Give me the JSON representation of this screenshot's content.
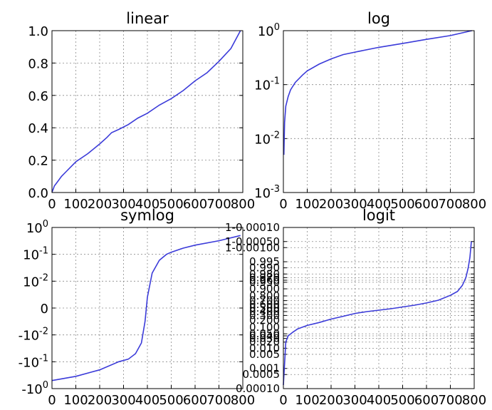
{
  "chart_data": [
    {
      "type": "line",
      "title": "linear",
      "yscale": "linear",
      "xlim": [
        0,
        800
      ],
      "ylim": [
        0,
        1
      ],
      "grid": true,
      "xticks": [
        "0",
        "100",
        "200",
        "300",
        "400",
        "500",
        "600",
        "700",
        "800"
      ],
      "yticks": [
        {
          "value": 0.0,
          "label": "0.0"
        },
        {
          "value": 0.2,
          "label": "0.2"
        },
        {
          "value": 0.4,
          "label": "0.4"
        },
        {
          "value": 0.6,
          "label": "0.6"
        },
        {
          "value": 0.8,
          "label": "0.8"
        },
        {
          "value": 1.0,
          "label": "1.0"
        }
      ],
      "series": [
        {
          "color": "#3b3bd9",
          "x": [
            0,
            5,
            10,
            20,
            40,
            60,
            80,
            100,
            150,
            200,
            230,
            250,
            280,
            320,
            360,
            400,
            450,
            500,
            550,
            600,
            650,
            700,
            750,
            790
          ],
          "y": [
            0.002,
            0.02,
            0.04,
            0.06,
            0.1,
            0.13,
            0.16,
            0.19,
            0.24,
            0.3,
            0.34,
            0.37,
            0.39,
            0.42,
            0.46,
            0.49,
            0.54,
            0.58,
            0.63,
            0.69,
            0.74,
            0.81,
            0.89,
            1.0
          ]
        }
      ]
    },
    {
      "type": "line",
      "title": "log",
      "yscale": "log",
      "xlim": [
        0,
        800
      ],
      "ylim": [
        0.001,
        1
      ],
      "grid": true,
      "xticks": [
        "0",
        "100",
        "200",
        "300",
        "400",
        "500",
        "600",
        "700",
        "800"
      ],
      "yticks": [
        {
          "value": 0.001,
          "base": "10",
          "exp": "-3"
        },
        {
          "value": 0.01,
          "base": "10",
          "exp": "-2"
        },
        {
          "value": 0.1,
          "base": "10",
          "exp": "-1"
        },
        {
          "value": 1,
          "base": "10",
          "exp": "0"
        }
      ],
      "series": [
        {
          "color": "#3b3bd9",
          "x": [
            2,
            5,
            10,
            20,
            30,
            50,
            80,
            100,
            150,
            200,
            250,
            300,
            400,
            500,
            600,
            700,
            790
          ],
          "y": [
            0.005,
            0.02,
            0.04,
            0.06,
            0.08,
            0.11,
            0.15,
            0.18,
            0.24,
            0.3,
            0.36,
            0.4,
            0.49,
            0.58,
            0.69,
            0.81,
            1.0
          ]
        }
      ]
    },
    {
      "type": "line",
      "title": "symlog",
      "yscale": "symlog",
      "xlim": [
        0,
        800
      ],
      "ylim": [
        -1,
        1
      ],
      "grid": true,
      "xticks": [
        "0",
        "100",
        "200",
        "300",
        "400",
        "500",
        "600",
        "700",
        "800"
      ],
      "yticks": [
        {
          "value": 1,
          "base": "10",
          "exp": "0"
        },
        {
          "value": 0.1,
          "base": "10",
          "exp": "-1"
        },
        {
          "value": 0.01,
          "base": "10",
          "exp": "-2"
        },
        {
          "value": 0,
          "label": "0"
        },
        {
          "value": -0.01,
          "base": "-10",
          "exp": "-2"
        },
        {
          "value": -0.1,
          "base": "-10",
          "exp": "-1"
        },
        {
          "value": -1,
          "base": "-10",
          "exp": "0"
        }
      ],
      "series": [
        {
          "color": "#3b3bd9",
          "x": [
            0,
            100,
            200,
            280,
            320,
            350,
            375,
            390,
            400,
            420,
            450,
            480,
            500,
            550,
            600,
            700,
            790
          ],
          "y": [
            -0.5,
            -0.35,
            -0.2,
            -0.1,
            -0.08,
            -0.05,
            -0.02,
            -0.005,
            0.004,
            0.02,
            0.06,
            0.1,
            0.12,
            0.17,
            0.22,
            0.32,
            0.5
          ]
        }
      ]
    },
    {
      "type": "line",
      "title": "logit",
      "yscale": "logit",
      "xlim": [
        0,
        800
      ],
      "ylim": [
        0.0001,
        0.9999
      ],
      "grid": true,
      "xticks": [
        "0",
        "100",
        "200",
        "300",
        "400",
        "500",
        "600",
        "700",
        "800"
      ],
      "yticks": [
        {
          "value": 0.9999,
          "label": "1-0.00010"
        },
        {
          "value": 0.9995,
          "label": "1-0.00050"
        },
        {
          "value": 0.999,
          "label": "1-0.00100"
        },
        {
          "value": 0.995,
          "label": "0.995"
        },
        {
          "value": 0.99,
          "label": "0.990"
        },
        {
          "value": 0.98,
          "label": "0.980"
        },
        {
          "value": 0.97,
          "label": "0.970"
        },
        {
          "value": 0.96,
          "label": "0.960"
        },
        {
          "value": 0.95,
          "label": "0.950"
        },
        {
          "value": 0.9,
          "label": "0.900"
        },
        {
          "value": 0.8,
          "label": "0.800"
        },
        {
          "value": 0.7,
          "label": "0.700"
        },
        {
          "value": 0.6,
          "label": "0.600"
        },
        {
          "value": 0.5,
          "label": "0.500"
        },
        {
          "value": 0.4,
          "label": "0.400"
        },
        {
          "value": 0.3,
          "label": "0.300"
        },
        {
          "value": 0.2,
          "label": "0.200"
        },
        {
          "value": 0.1,
          "label": "0.100"
        },
        {
          "value": 0.05,
          "label": "0.050"
        },
        {
          "value": 0.04,
          "label": "0.040"
        },
        {
          "value": 0.03,
          "label": "0.030"
        },
        {
          "value": 0.02,
          "label": "0.020"
        },
        {
          "value": 0.01,
          "label": "0.010"
        },
        {
          "value": 0.005,
          "label": "0.005"
        },
        {
          "value": 0.001,
          "label": "0.001"
        },
        {
          "value": 0.0005,
          "label": "0.0005"
        },
        {
          "value": 0.0001,
          "label": "0.00010"
        }
      ],
      "series": [
        {
          "color": "#3b3bd9",
          "x": [
            0,
            10,
            20,
            40,
            60,
            100,
            150,
            200,
            250,
            300,
            350,
            400,
            450,
            500,
            550,
            600,
            650,
            700,
            730,
            750,
            765,
            775,
            782,
            788
          ],
          "y": [
            0.00015,
            0.02,
            0.04,
            0.06,
            0.085,
            0.12,
            0.16,
            0.22,
            0.28,
            0.35,
            0.4,
            0.44,
            0.48,
            0.53,
            0.58,
            0.64,
            0.71,
            0.81,
            0.87,
            0.93,
            0.97,
            0.99,
            0.997,
            0.9995
          ]
        }
      ]
    }
  ]
}
